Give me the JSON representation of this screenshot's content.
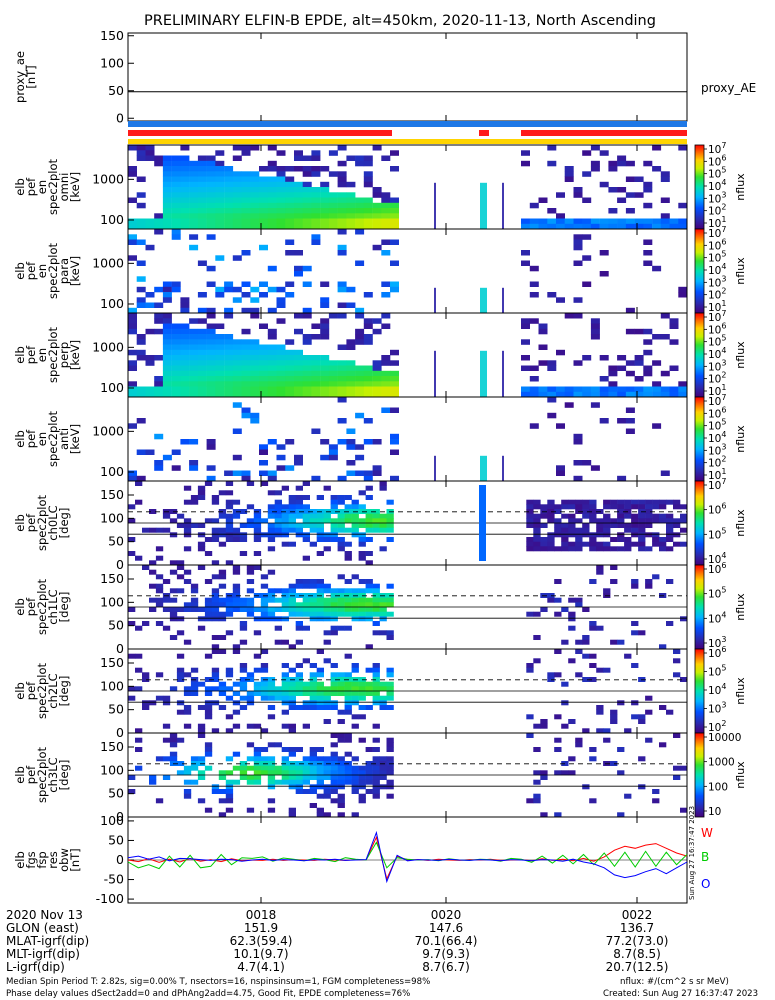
{
  "title": "PRELIMINARY ELFIN-B EPDE, alt=450km, 2020-11-13, North Ascending",
  "time_axis": {
    "ticks": [
      "0018",
      "0020",
      "0022"
    ],
    "row_labels": [
      "2020 Nov 13",
      "GLON (east)",
      "MLAT-igrf(dip)",
      "MLT-igrf(dip)",
      "L-igrf(dip)"
    ],
    "rows": [
      [
        "151.9",
        "147.6",
        "136.7"
      ],
      [
        "62.3(59.4)",
        "70.1(66.4)",
        "77.2(73.0)"
      ],
      [
        "10.1(9.7)",
        "9.7(9.3)",
        "8.7(8.5)"
      ],
      [
        "4.7(4.1)",
        "8.7(6.7)",
        "20.7(12.5)"
      ]
    ]
  },
  "footer": {
    "left1": "Median Spin Period T: 2.82s, sig=0.00% T, nsectors=16, nspinsinsum=1, FGM completeness=98%",
    "left2": "Phase delay values dSect2add=0 and dPhAng2add=4.75, Good Fit, EPDE completeness=76%",
    "right1": "nflux: #/(cm^2 s sr MeV)",
    "right2": "Created: Sun Aug 27 16:37:47 2023",
    "side_stamp": "Sun Aug 27 16:37:47 2023"
  },
  "chart_data": [
    {
      "type": "line",
      "ylabel": "proxy_ae [nT]",
      "ylim": [
        -5,
        155
      ],
      "yticks": [
        "150",
        "100",
        "50",
        "0"
      ],
      "series": [
        {
          "name": "proxy_AE",
          "values": [
            48,
            48,
            48,
            48,
            48,
            48,
            48,
            48,
            48,
            48
          ]
        }
      ]
    },
    {
      "type": "heatmap",
      "ylabel": "elb pef en spec2plot omni [keV]",
      "yscale": "log",
      "yticks": [
        "1000",
        "100"
      ],
      "colorbar_label": "nflux",
      "colorbar_ticks": [
        "10^1",
        "10^2",
        "10^3",
        "10^4",
        "10^5",
        "10^6",
        "10^7"
      ]
    },
    {
      "type": "heatmap",
      "ylabel": "elb pef en spec2plot para [keV]",
      "yscale": "log",
      "yticks": [
        "1000",
        "100"
      ],
      "colorbar_label": "nflux",
      "colorbar_ticks": [
        "10^1",
        "10^2",
        "10^3",
        "10^4",
        "10^5",
        "10^6",
        "10^7"
      ]
    },
    {
      "type": "heatmap",
      "ylabel": "elb pef en spec2plot perp [keV]",
      "yscale": "log",
      "yticks": [
        "1000",
        "100"
      ],
      "colorbar_label": "nflux",
      "colorbar_ticks": [
        "10^1",
        "10^2",
        "10^3",
        "10^4",
        "10^5",
        "10^6",
        "10^7"
      ]
    },
    {
      "type": "heatmap",
      "ylabel": "elb pef en spec2plot anti [keV]",
      "yscale": "log",
      "yticks": [
        "1000",
        "100"
      ],
      "colorbar_label": "nflux",
      "colorbar_ticks": [
        "10^1",
        "10^2",
        "10^3",
        "10^4",
        "10^5",
        "10^6",
        "10^7"
      ]
    },
    {
      "type": "heatmap",
      "ylabel": "elb pef spec2plot ch0LC [deg]",
      "ylim": [
        0,
        180
      ],
      "yticks": [
        "150",
        "100",
        "50",
        "0"
      ],
      "colorbar_label": "nflux",
      "colorbar_ticks": [
        "10^4",
        "10^5",
        "10^6",
        "10^7"
      ]
    },
    {
      "type": "heatmap",
      "ylabel": "elb pef spec2plot ch1LC [deg]",
      "ylim": [
        0,
        180
      ],
      "yticks": [
        "150",
        "100",
        "50",
        "0"
      ],
      "colorbar_label": "nflux",
      "colorbar_ticks": [
        "10^3",
        "10^4",
        "10^5",
        "10^6"
      ]
    },
    {
      "type": "heatmap",
      "ylabel": "elb pef spec2plot ch2LC [deg]",
      "ylim": [
        0,
        180
      ],
      "yticks": [
        "150",
        "100",
        "50",
        "0"
      ],
      "colorbar_label": "nflux",
      "colorbar_ticks": [
        "10^2",
        "10^3",
        "10^4",
        "10^5",
        "10^6"
      ]
    },
    {
      "type": "heatmap",
      "ylabel": "elb pef spec2plot ch3LC [deg]",
      "ylim": [
        0,
        180
      ],
      "yticks": [
        "150",
        "100",
        "50",
        "0"
      ],
      "colorbar_label": "nflux",
      "colorbar_ticks": [
        "10",
        "100",
        "1000",
        "10000"
      ]
    },
    {
      "type": "line",
      "ylabel": "elb fgs fsp res obw [nT]",
      "ylim": [
        -110,
        110
      ],
      "yticks": [
        "100",
        "50",
        "0",
        "-50",
        "-100"
      ],
      "series": [
        {
          "name": "W",
          "color": "#ff0000",
          "values": [
            0,
            -4,
            3,
            -6,
            2,
            -5,
            4,
            -3,
            1,
            -4,
            3,
            -2,
            0,
            -1,
            2,
            -1,
            1,
            0,
            -1,
            2,
            0,
            -1,
            1,
            0,
            58,
            -48,
            10,
            0,
            1,
            -1,
            2,
            0,
            -1,
            1,
            0,
            2,
            -1,
            0,
            1,
            -2,
            3,
            -1,
            2,
            -2,
            4,
            -3,
            8,
            25,
            35,
            30,
            38,
            42,
            30,
            18,
            10
          ]
        },
        {
          "name": "B",
          "color": "#00cc00",
          "values": [
            -5,
            -20,
            -12,
            -22,
            10,
            -18,
            12,
            -20,
            -16,
            14,
            -12,
            6,
            4,
            8,
            -3,
            5,
            2,
            -2,
            4,
            1,
            -4,
            6,
            2,
            0,
            45,
            -20,
            6,
            2,
            0,
            1,
            -2,
            3,
            0,
            -1,
            2,
            1,
            -3,
            4,
            2,
            -6,
            10,
            -8,
            12,
            -10,
            14,
            -12,
            18,
            -16,
            20,
            -18,
            22,
            -16,
            20,
            -12,
            14
          ]
        },
        {
          "name": "O",
          "color": "#0000ff",
          "values": [
            6,
            10,
            2,
            8,
            -2,
            4,
            3,
            1,
            -1,
            2,
            1,
            -3,
            0,
            2,
            -1,
            1,
            0,
            -2,
            1,
            0,
            2,
            -1,
            0,
            1,
            70,
            -55,
            12,
            -2,
            1,
            0,
            -1,
            2,
            0,
            -1,
            1,
            0,
            -2,
            1,
            0,
            -2,
            1,
            0,
            -3,
            2,
            -5,
            -10,
            -20,
            -38,
            -45,
            -40,
            -30,
            -22,
            -35,
            -20,
            -5
          ]
        }
      ]
    }
  ]
}
